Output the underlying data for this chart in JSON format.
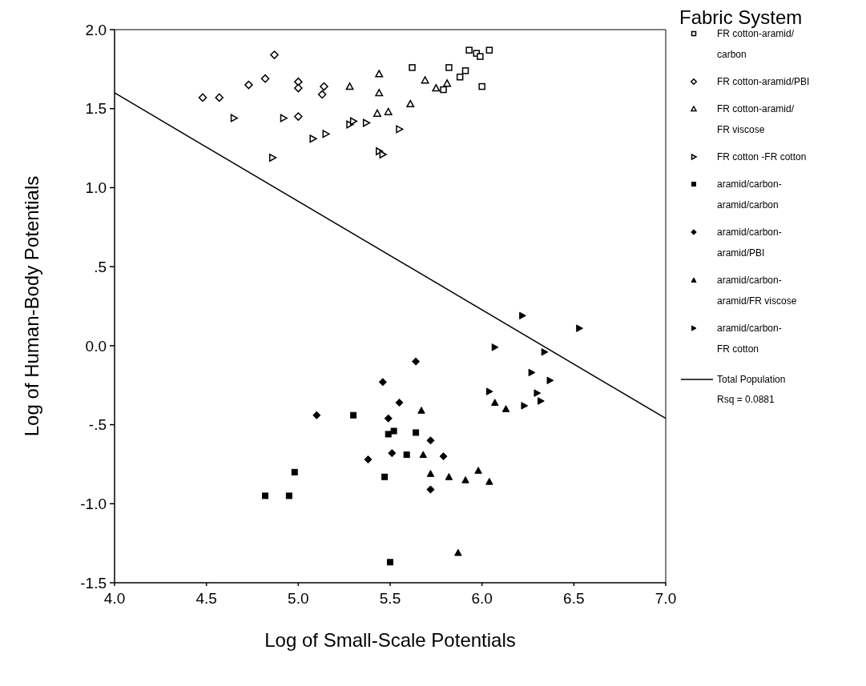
{
  "chart_data": {
    "type": "scatter",
    "xlabel": "Log of Small-Scale Potentials",
    "ylabel": "Log of Human-Body Potentials",
    "legend_title": "Fabric System",
    "legend": "right",
    "grid": false,
    "xlim": [
      4,
      7
    ],
    "xticks": [
      {
        "value": 4,
        "label": "4.0"
      },
      {
        "value": 4.5,
        "label": "4.5"
      },
      {
        "value": 5,
        "label": "5.0"
      },
      {
        "value": 5.5,
        "label": "5.5"
      },
      {
        "value": 6,
        "label": "6.0"
      },
      {
        "value": 6.5,
        "label": "6.5"
      },
      {
        "value": 7,
        "label": "7.0"
      }
    ],
    "ylim": [
      -1.5,
      2
    ],
    "yticks": [
      {
        "value": 2,
        "label": "2.0"
      },
      {
        "value": 1.5,
        "label": "1.5"
      },
      {
        "value": 1,
        "label": "1.0"
      },
      {
        "value": 0.5,
        "label": ".5"
      },
      {
        "value": 0,
        "label": "0.0"
      },
      {
        "value": -0.5,
        "label": "-.5"
      },
      {
        "value": -1,
        "label": "-1.0"
      },
      {
        "value": -1.5,
        "label": "-1.5"
      }
    ],
    "annotations": [
      "Rsq = 0.0881"
    ],
    "series": [
      {
        "name": "FR cotton-aramid/carbon",
        "color": "#000000",
        "marker": "square-open",
        "x": [
          5.62,
          5.82,
          5.91,
          5.88,
          5.93,
          5.97,
          5.99,
          6.04,
          6.0,
          5.79
        ],
        "values": [
          1.76,
          1.76,
          1.74,
          1.7,
          1.87,
          1.85,
          1.83,
          1.87,
          1.64,
          1.62
        ]
      },
      {
        "name": "FR cotton-aramid/PBI",
        "color": "#000000",
        "marker": "diamond-open",
        "x": [
          4.48,
          4.57,
          4.73,
          4.82,
          4.87,
          5.0,
          5.0,
          5.14,
          5.13,
          5.0
        ],
        "values": [
          1.57,
          1.57,
          1.65,
          1.69,
          1.84,
          1.67,
          1.63,
          1.64,
          1.59,
          1.45
        ]
      },
      {
        "name": "FR cotton-aramid/FR viscose",
        "color": "#000000",
        "marker": "triangle-open",
        "x": [
          5.28,
          5.44,
          5.44,
          5.69,
          5.75,
          5.81,
          5.61,
          5.43,
          5.49
        ],
        "values": [
          1.64,
          1.72,
          1.6,
          1.68,
          1.63,
          1.66,
          1.53,
          1.47,
          1.48
        ]
      },
      {
        "name": "FR cotton -FR cotton",
        "color": "#000000",
        "marker": "triangle-right-open",
        "x": [
          4.65,
          4.86,
          4.92,
          5.08,
          5.15,
          5.28,
          5.3,
          5.37,
          5.55,
          5.44,
          5.46
        ],
        "values": [
          1.44,
          1.19,
          1.44,
          1.31,
          1.34,
          1.4,
          1.42,
          1.41,
          1.37,
          1.23,
          1.21
        ]
      },
      {
        "name": "aramid/carbon-aramid/carbon",
        "color": "#000000",
        "marker": "square",
        "x": [
          5.3,
          5.49,
          5.52,
          5.64,
          5.59,
          5.47,
          4.98,
          4.82,
          4.95,
          5.5
        ],
        "values": [
          -0.44,
          -0.56,
          -0.54,
          -0.55,
          -0.69,
          -0.83,
          -0.8,
          -0.95,
          -0.95,
          -1.37
        ]
      },
      {
        "name": "aramid/carbon-aramid/PBI",
        "color": "#000000",
        "marker": "diamond",
        "x": [
          5.64,
          5.46,
          5.55,
          5.1,
          5.49,
          5.72,
          5.51,
          5.38,
          5.79,
          5.72
        ],
        "values": [
          -0.1,
          -0.23,
          -0.36,
          -0.44,
          -0.46,
          -0.6,
          -0.68,
          -0.72,
          -0.7,
          -0.91
        ]
      },
      {
        "name": "aramid/carbon-aramid/FR viscose",
        "color": "#000000",
        "marker": "triangle",
        "x": [
          5.67,
          5.68,
          5.72,
          5.82,
          5.91,
          5.98,
          6.04,
          5.87,
          6.07,
          6.13
        ],
        "values": [
          -0.41,
          -0.69,
          -0.81,
          -0.83,
          -0.85,
          -0.79,
          -0.86,
          -1.31,
          -0.36,
          -0.4
        ]
      },
      {
        "name": "aramid/carbon-FR cotton",
        "color": "#000000",
        "marker": "triangle-right",
        "x": [
          6.07,
          6.22,
          6.53,
          6.34,
          6.27,
          6.37,
          6.04,
          6.3,
          6.32,
          6.23
        ],
        "values": [
          -0.01,
          0.19,
          0.11,
          -0.04,
          -0.17,
          -0.22,
          -0.29,
          -0.3,
          -0.35,
          -0.38
        ]
      },
      {
        "name": "Total Population",
        "type": "line",
        "color": "#000000",
        "marker": "none",
        "line_style": "solid",
        "x": [
          4,
          7
        ],
        "values": [
          1.6,
          -0.46
        ]
      }
    ]
  }
}
